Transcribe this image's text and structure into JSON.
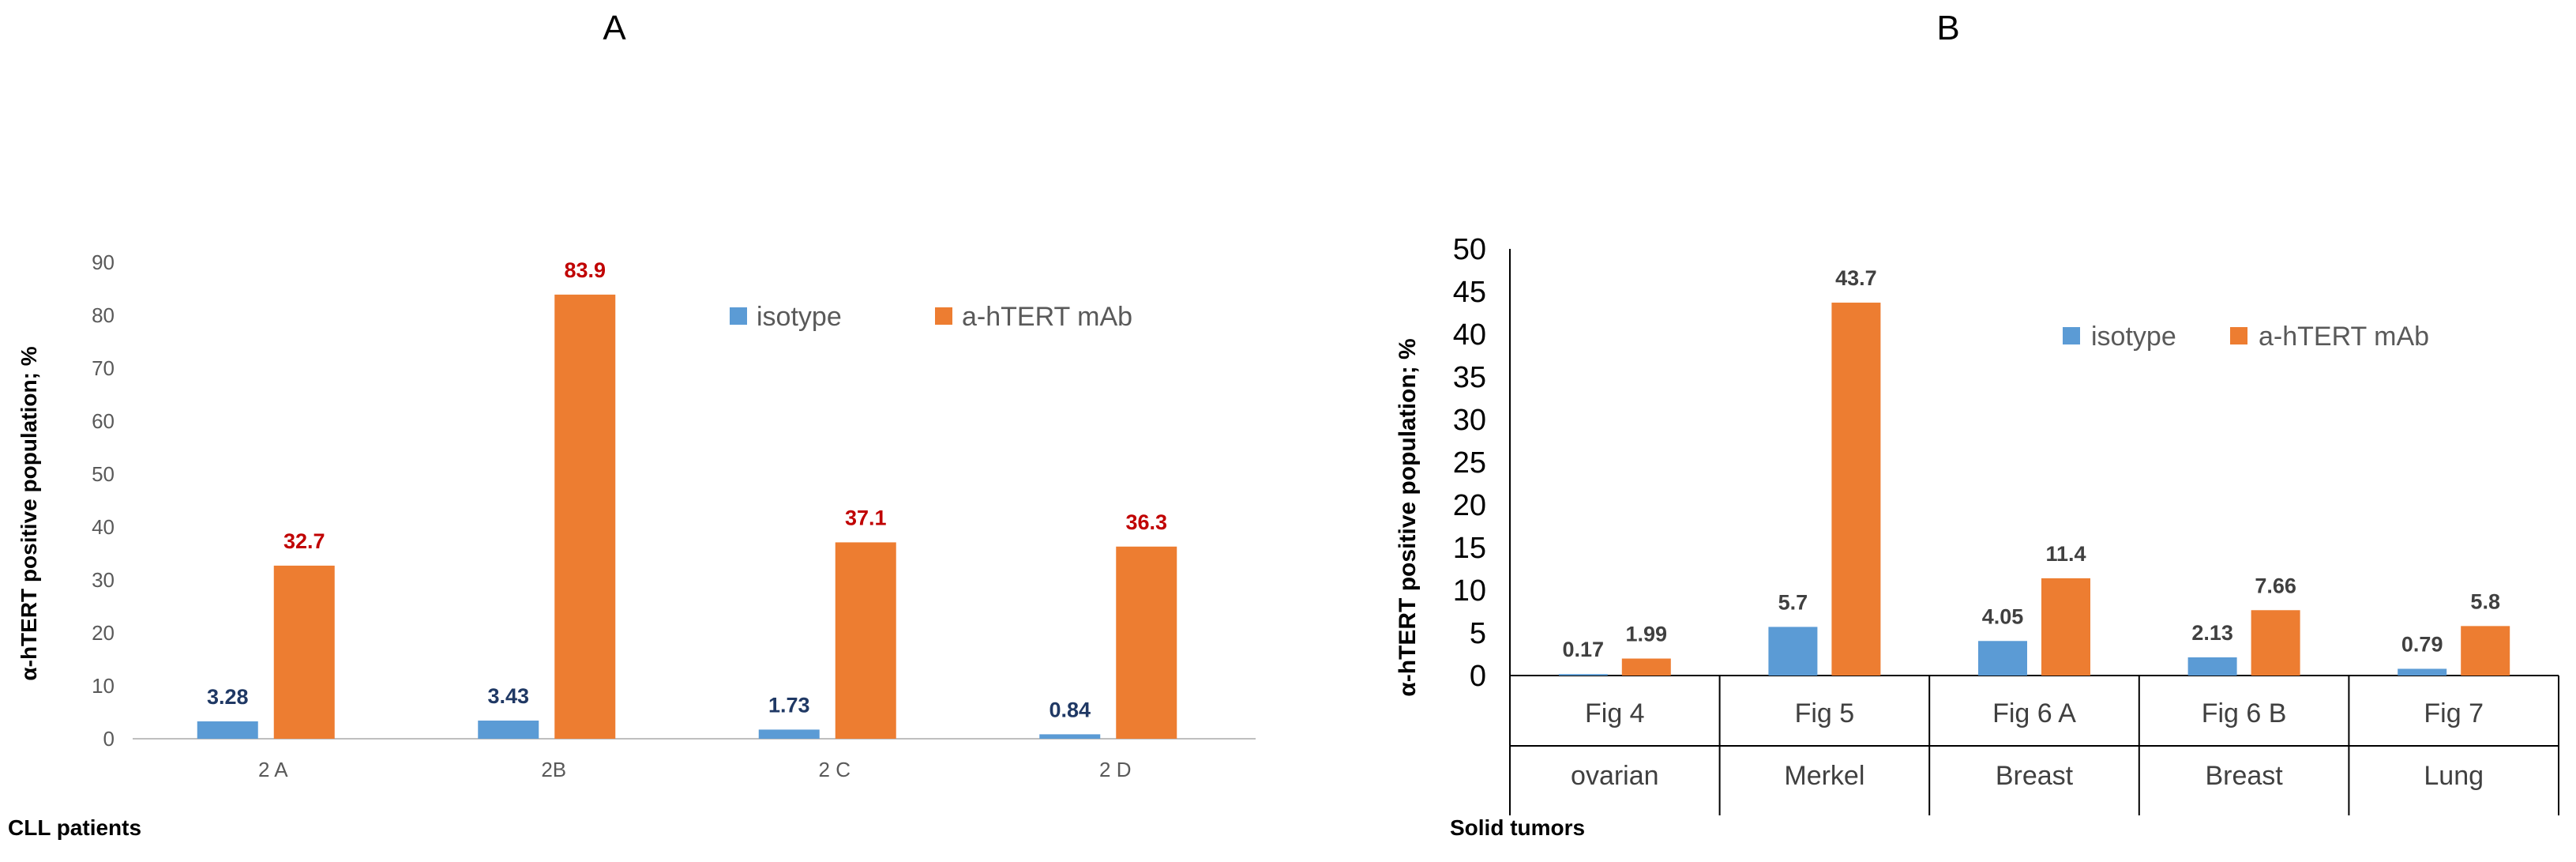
{
  "chart_data": [
    {
      "panel_label": "A",
      "type": "bar",
      "title": "",
      "ylabel": "α-hTERT positive  population; %",
      "xlabel": "CLL patients",
      "ylim": [
        0,
        90
      ],
      "yticks": [
        "0",
        "10",
        "20",
        "30",
        "40",
        "50",
        "60",
        "70",
        "80",
        "90"
      ],
      "categories": [
        "2 A",
        "2B",
        "2 C",
        "2 D"
      ],
      "series": [
        {
          "name": "isotype",
          "color": "#5b9bd5",
          "label_color": "#1f3864",
          "values": [
            3.28,
            3.43,
            1.73,
            0.84
          ],
          "labels": [
            "3.28",
            "3.43",
            "1.73",
            "0.84"
          ]
        },
        {
          "name": "a-hTERT mAb",
          "color": "#ed7d31",
          "label_color": "#c00000",
          "values": [
            32.7,
            83.9,
            37.1,
            36.3
          ],
          "labels": [
            "32.7",
            "83.9",
            "37.1",
            "36.3"
          ]
        }
      ],
      "legend": [
        "isotype",
        "a-hTERT mAb"
      ],
      "legend_position": "top-right"
    },
    {
      "panel_label": "B",
      "type": "bar",
      "title": "",
      "ylabel": "α-hTERT positive population;  %",
      "xlabel": "Solid tumors",
      "ylim": [
        0,
        50
      ],
      "yticks": [
        "0",
        "5",
        "10",
        "15",
        "20",
        "25",
        "30",
        "35",
        "40",
        "45",
        "50"
      ],
      "categories": [
        "Fig 4",
        "Fig 5",
        "Fig 6 A",
        "Fig 6 B",
        "Fig 7"
      ],
      "subcategories": [
        "ovarian",
        "Merkel",
        "Breast",
        "Breast",
        "Lung"
      ],
      "series": [
        {
          "name": "isotype",
          "color": "#5b9bd5",
          "label_color": "#404040",
          "values": [
            0.17,
            5.7,
            4.05,
            2.13,
            0.79
          ],
          "labels": [
            "0.17",
            "5.7",
            "4.05",
            "2.13",
            "0.79"
          ]
        },
        {
          "name": "a-hTERT mAb",
          "color": "#ed7d31",
          "label_color": "#404040",
          "values": [
            1.99,
            43.7,
            11.4,
            7.66,
            5.8
          ],
          "labels": [
            "1.99",
            "43.7",
            "11.4",
            "7.66",
            "5.8"
          ]
        }
      ],
      "legend": [
        "isotype",
        "a-hTERT mAb"
      ],
      "legend_position": "top-right"
    }
  ]
}
